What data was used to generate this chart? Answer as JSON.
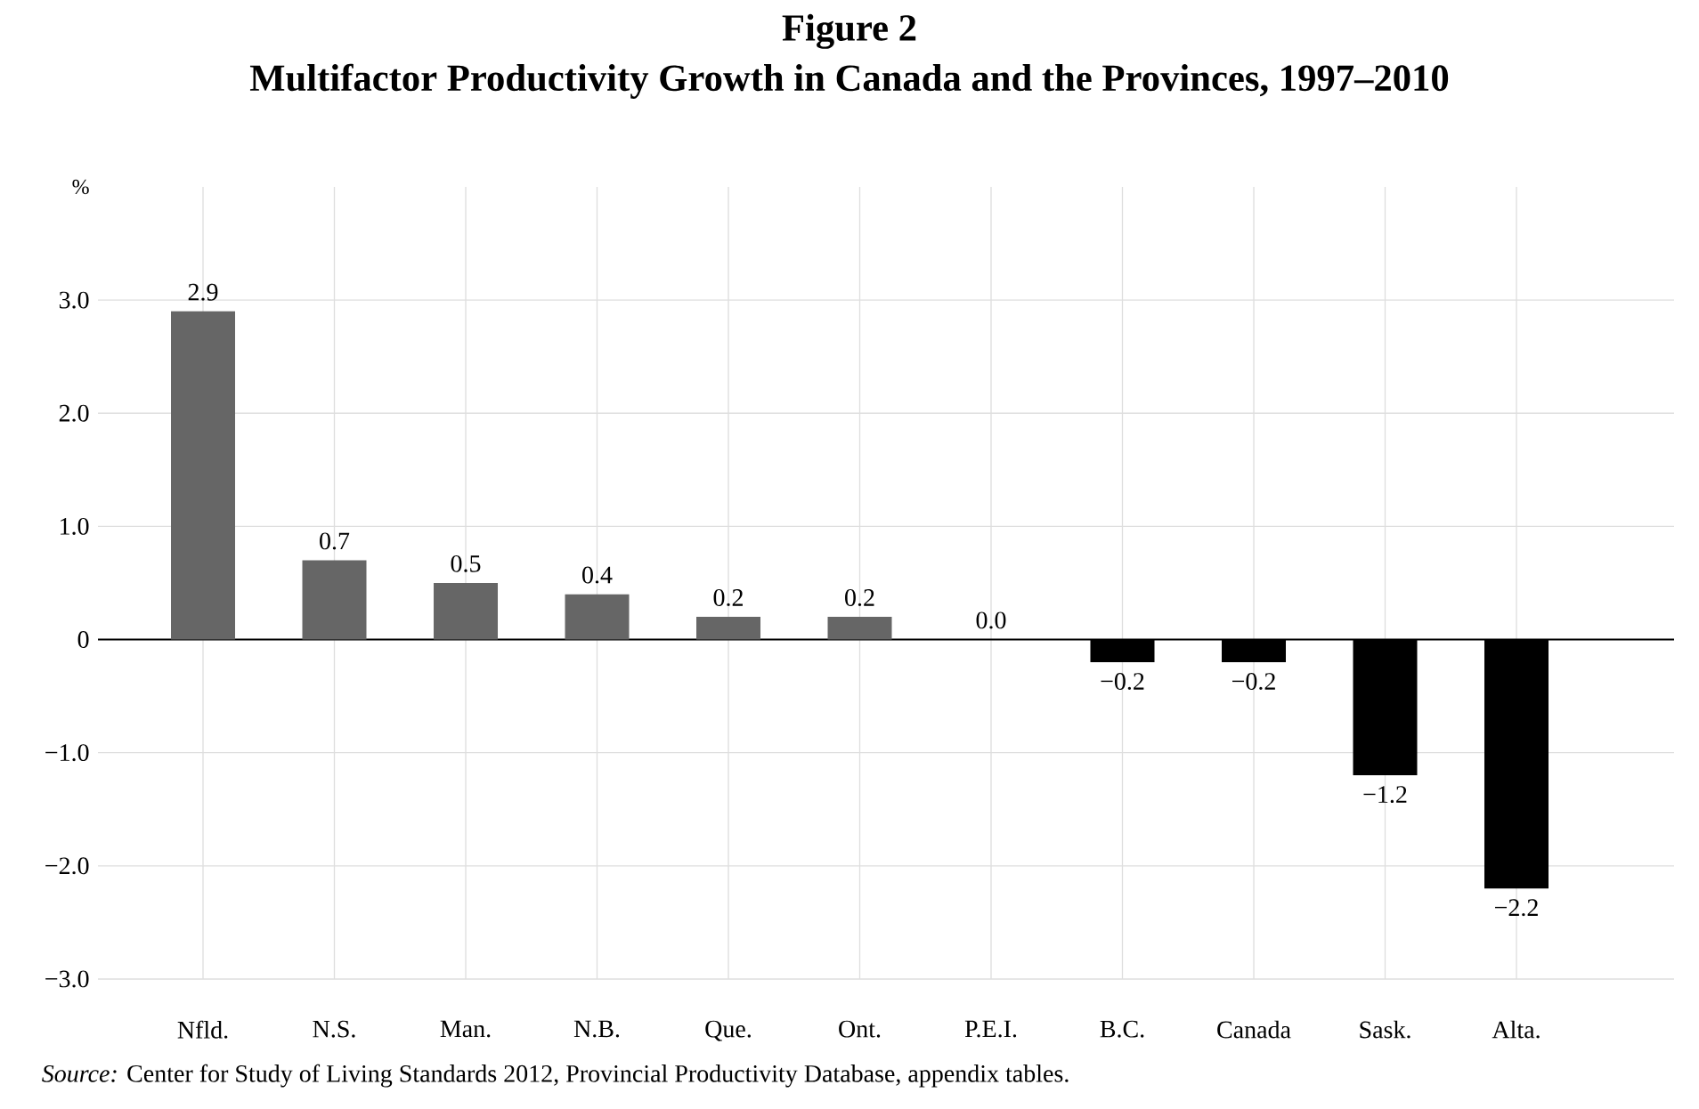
{
  "chart_data": {
    "type": "bar",
    "title": "Figure 2",
    "subtitle": "Multifactor Productivity Growth in Canada and the Provinces, 1997–2010",
    "ylabel": "%",
    "categories": [
      "Nfld.",
      "N.S.",
      "Man.",
      "N.B.",
      "Que.",
      "Ont.",
      "P.E.I.",
      "B.C.",
      "Canada",
      "Sask.",
      "Alta."
    ],
    "values": [
      2.9,
      0.7,
      0.5,
      0.4,
      0.2,
      0.2,
      0.0,
      -0.2,
      -0.2,
      -1.2,
      -2.2
    ],
    "value_labels": [
      "2.9",
      "0.7",
      "0.5",
      "0.4",
      "0.2",
      "0.2",
      "0.0",
      "−0.2",
      "−0.2",
      "−1.2",
      "−2.2"
    ],
    "colors": [
      "#666666",
      "#666666",
      "#666666",
      "#666666",
      "#666666",
      "#666666",
      "#666666",
      "#000000",
      "#000000",
      "#000000",
      "#000000"
    ],
    "ylim": [
      -3,
      4
    ],
    "yticks": [
      {
        "value": 3,
        "label": "3.0"
      },
      {
        "value": 2,
        "label": "2.0"
      },
      {
        "value": 1,
        "label": "1.0"
      },
      0,
      {
        "value": -1,
        "label": "−1.0"
      },
      {
        "value": -2,
        "label": "−2.0"
      },
      {
        "value": -3,
        "label": "−3.0"
      }
    ],
    "grid": true,
    "annotations": [
      "*Source:* Center for Study of Living Standards 2012, Provincial Productivity Database, appendix tables."
    ]
  }
}
